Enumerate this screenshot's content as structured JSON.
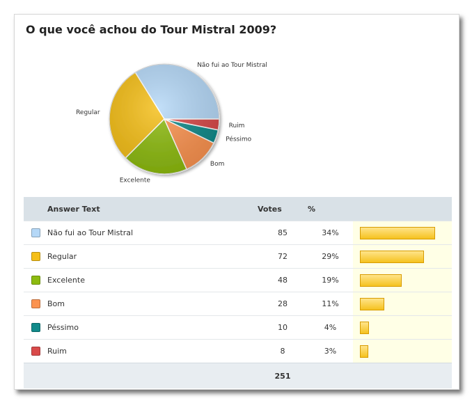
{
  "poll": {
    "title": "O que você achou do Tour Mistral 2009?"
  },
  "table": {
    "headers": {
      "answer": "Answer Text",
      "votes": "Votes",
      "percent": "%"
    },
    "rows": [
      {
        "answer": "Não fui ao Tour Mistral",
        "votes": "85",
        "percent": "34%",
        "share": 0.34,
        "color": "#b5d8f7"
      },
      {
        "answer": "Regular",
        "votes": "72",
        "percent": "29%",
        "share": 0.29,
        "color": "#f5bf18"
      },
      {
        "answer": "Excelente",
        "votes": "48",
        "percent": "19%",
        "share": 0.19,
        "color": "#8dbb10"
      },
      {
        "answer": "Bom",
        "votes": "28",
        "percent": "11%",
        "share": 0.11,
        "color": "#fb9350"
      },
      {
        "answer": "Péssimo",
        "votes": "10",
        "percent": "4%",
        "share": 0.04,
        "color": "#118a8a"
      },
      {
        "answer": "Ruim",
        "votes": "8",
        "percent": "3%",
        "share": 0.03,
        "color": "#d94a4a"
      }
    ],
    "total": "251"
  },
  "chart_data": {
    "type": "pie",
    "title": "O que você achou do Tour Mistral 2009?",
    "categories": [
      "Não fui ao Tour Mistral",
      "Regular",
      "Excelente",
      "Bom",
      "Péssimo",
      "Ruim"
    ],
    "values": [
      85,
      72,
      48,
      28,
      10,
      8
    ],
    "percent": [
      34,
      29,
      19,
      11,
      4,
      3
    ],
    "colors": [
      "#b5d8f7",
      "#f5bf18",
      "#8dbb10",
      "#fb9350",
      "#118a8a",
      "#d94a4a"
    ],
    "start_angle_deg": 0,
    "direction": "counterclockwise",
    "total": 251
  }
}
